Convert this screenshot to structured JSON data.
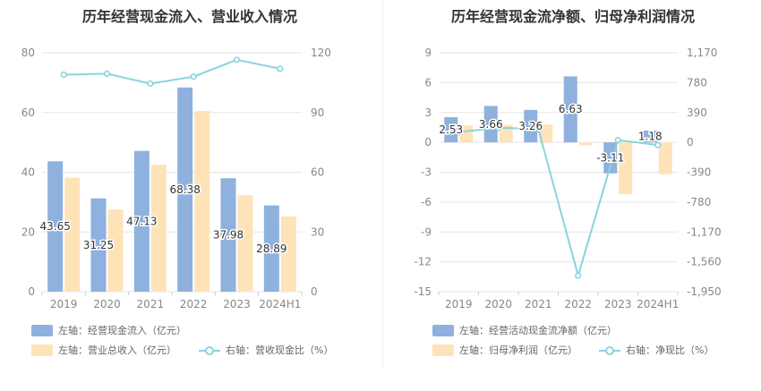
{
  "charts": {
    "left": {
      "title": "历年经营现金流入、营业收入情况",
      "legend": [
        {
          "label": "左轴：经营现金流入（亿元）",
          "kind": "bar",
          "color": "#8eb1de"
        },
        {
          "label": "左轴：营业总收入（亿元）",
          "kind": "bar",
          "color": "#ffe3b8"
        },
        {
          "label": "右轴：营收现金比（%）",
          "kind": "line",
          "color": "#88d4dc"
        }
      ]
    },
    "right": {
      "title": "历年经营现金流净额、归母净利润情况",
      "legend": [
        {
          "label": "左轴：经营活动现金流净额（亿元）",
          "kind": "bar",
          "color": "#8eb1de"
        },
        {
          "label": "左轴：归母净利润（亿元）",
          "kind": "bar",
          "color": "#ffe3b8"
        },
        {
          "label": "右轴：净现比（%）",
          "kind": "line",
          "color": "#88d4dc"
        }
      ]
    }
  },
  "chart_data": [
    {
      "type": "bar",
      "title": "历年经营现金流入、营业收入情况",
      "categories": [
        "2019",
        "2020",
        "2021",
        "2022",
        "2023",
        "2024H1"
      ],
      "ylim_left": [
        0,
        80
      ],
      "yticks_left": [
        "0",
        "20",
        "40",
        "60",
        "80"
      ],
      "ylim_right": [
        0,
        120
      ],
      "yticks_right": [
        "0",
        "30",
        "60",
        "90",
        "120"
      ],
      "series": [
        {
          "name": "左轴：经营现金流入（亿元）",
          "axis": "left",
          "type": "bar",
          "color": "#8eb1de",
          "values": [
            43.65,
            31.25,
            47.13,
            68.38,
            37.98,
            28.89
          ],
          "labels": [
            "43.65",
            "31.25",
            "47.13",
            "68.38",
            "37.98",
            "28.89"
          ]
        },
        {
          "name": "左轴：营业总收入（亿元）",
          "axis": "left",
          "type": "bar",
          "color": "#ffe3b8",
          "values": [
            38.2,
            27.5,
            42.5,
            60.5,
            32.3,
            25.2
          ]
        },
        {
          "name": "右轴：营收现金比（%）",
          "axis": "right",
          "type": "line",
          "color": "#88d4dc",
          "values": [
            109,
            109.5,
            104.5,
            108,
            116.5,
            112
          ]
        }
      ],
      "grid": true,
      "legend_position": "bottom"
    },
    {
      "type": "bar",
      "title": "历年经营现金流净额、归母净利润情况",
      "categories": [
        "2019",
        "2020",
        "2021",
        "2022",
        "2023",
        "2024H1"
      ],
      "ylim_left": [
        -15,
        9
      ],
      "yticks_left": [
        "-15",
        "-12",
        "-9",
        "-6",
        "-3",
        "0",
        "3",
        "6",
        "9"
      ],
      "ylim_right": [
        -1950,
        1170
      ],
      "yticks_right": [
        "-1,950",
        "-1,560",
        "-1,170",
        "-780",
        "-390",
        "0",
        "390",
        "780",
        "1,170"
      ],
      "series": [
        {
          "name": "左轴：经营活动现金流净额（亿元）",
          "axis": "left",
          "type": "bar",
          "color": "#8eb1de",
          "values": [
            2.53,
            3.66,
            3.26,
            6.63,
            -3.11,
            1.18
          ],
          "labels": [
            "2.53",
            "3.66",
            "3.26",
            "6.63",
            "-3.11",
            "1.18"
          ]
        },
        {
          "name": "左轴：归母净利润（亿元）",
          "axis": "left",
          "type": "bar",
          "color": "#ffe3b8",
          "values": [
            1.7,
            1.75,
            1.8,
            -0.3,
            -5.2,
            -3.2
          ]
        },
        {
          "name": "右轴：净现比（%）",
          "axis": "right",
          "type": "line",
          "color": "#88d4dc",
          "values": [
            135,
            190,
            175,
            -1740,
            30,
            -35
          ]
        }
      ],
      "grid": true,
      "legend_position": "bottom"
    }
  ]
}
